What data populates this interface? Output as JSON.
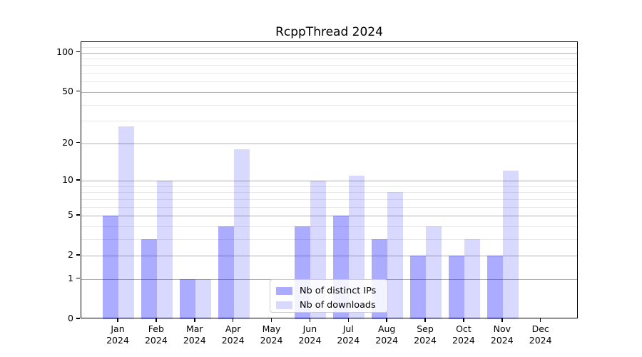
{
  "chart_data": {
    "type": "bar",
    "title": "RcppThread 2024",
    "categories": [
      "Jan",
      "Feb",
      "Mar",
      "Apr",
      "May",
      "Jun",
      "Jul",
      "Aug",
      "Sep",
      "Oct",
      "Nov",
      "Dec"
    ],
    "category_year": "2024",
    "series": [
      {
        "name": "Nb of distinct IPs",
        "color": "rgba(0,0,255,0.33)",
        "values": [
          5,
          3,
          1,
          4,
          0,
          4,
          5,
          3,
          2,
          2,
          2,
          0
        ]
      },
      {
        "name": "Nb of downloads",
        "color": "rgba(0,0,255,0.15)",
        "values": [
          27,
          10,
          1,
          18,
          0,
          10,
          11,
          8,
          4,
          3,
          12,
          0
        ]
      }
    ],
    "xlabel": "",
    "ylabel": "",
    "y_axis": {
      "scale": "log1p",
      "major_ticks": [
        0,
        1,
        2,
        5,
        10,
        20,
        50,
        100
      ],
      "minor_ticks": [
        3,
        4,
        6,
        7,
        8,
        9,
        30,
        40,
        60,
        70,
        80,
        90,
        110
      ],
      "ylim": [
        0,
        120
      ]
    },
    "grid": true,
    "legend_position": "lower-center"
  },
  "colors": {
    "major_grid": "#b0b0b0",
    "minor_grid": "#e9e9e9",
    "axis": "#000000",
    "legend_border": "#cccccc"
  }
}
